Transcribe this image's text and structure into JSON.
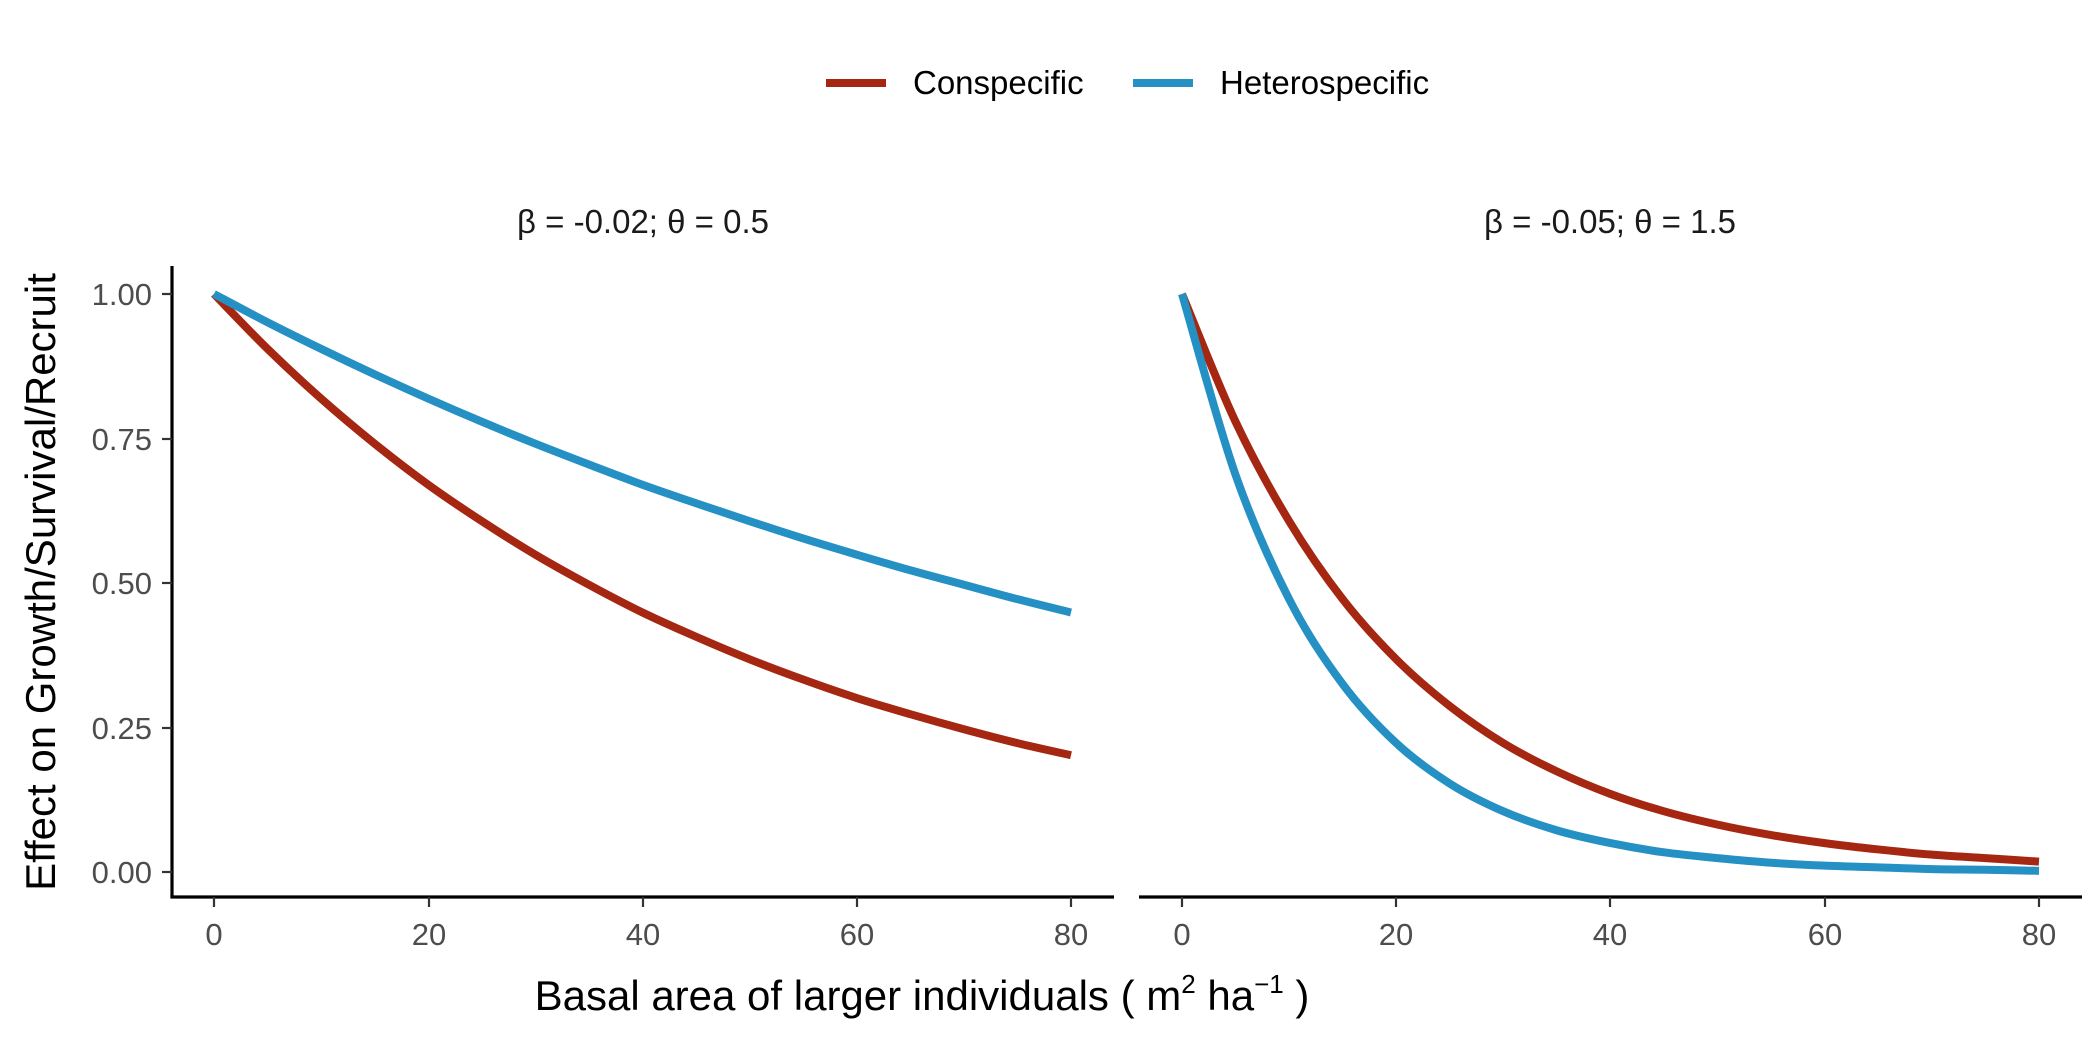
{
  "chart_data": {
    "type": "line",
    "legend": {
      "position": "top",
      "entries": [
        {
          "label": "Conspecific",
          "color": "#A52712"
        },
        {
          "label": "Heterospecific",
          "color": "#2590C3"
        }
      ]
    },
    "xlabel": "Basal area of larger individuals ( m",
    "xlabel_sup1": "2",
    "xlabel_mid": " ha",
    "xlabel_sup2": "−1",
    "xlabel_end": " )",
    "ylabel": "Effect on Growth/Survival/Recruit",
    "xlim": [
      0,
      80
    ],
    "ylim": [
      0,
      1
    ],
    "x_ticks": [
      0,
      20,
      40,
      60,
      80
    ],
    "x_tick_labels": [
      "0",
      "20",
      "40",
      "60",
      "80"
    ],
    "y_ticks": [
      0,
      0.25,
      0.5,
      0.75,
      1
    ],
    "y_tick_labels": [
      "0.00",
      "0.25",
      "0.50",
      "0.75",
      "1.00"
    ],
    "grid": false,
    "panels": [
      {
        "label": "β = -0.02; θ = 0.5",
        "x": [
          0,
          5,
          10,
          15,
          20,
          25,
          30,
          35,
          40,
          45,
          50,
          55,
          60,
          65,
          70,
          75,
          80
        ],
        "series": [
          {
            "name": "Conspecific",
            "color": "#A52712",
            "values": [
              1.0,
              0.905,
              0.819,
              0.741,
              0.67,
              0.607,
              0.549,
              0.497,
              0.449,
              0.407,
              0.368,
              0.333,
              0.301,
              0.273,
              0.247,
              0.223,
              0.202
            ]
          },
          {
            "name": "Heterospecific",
            "color": "#2590C3",
            "values": [
              1.0,
              0.951,
              0.905,
              0.861,
              0.819,
              0.779,
              0.741,
              0.705,
              0.67,
              0.638,
              0.607,
              0.577,
              0.549,
              0.522,
              0.497,
              0.472,
              0.449
            ]
          }
        ]
      },
      {
        "label": "β = -0.05; θ = 1.5",
        "x": [
          0,
          5,
          10,
          15,
          20,
          25,
          30,
          35,
          40,
          45,
          50,
          55,
          60,
          65,
          70,
          75,
          80
        ],
        "series": [
          {
            "name": "Conspecific",
            "color": "#A52712",
            "values": [
              1.0,
              0.779,
              0.607,
              0.472,
              0.368,
              0.287,
              0.223,
              0.174,
              0.135,
              0.105,
              0.082,
              0.064,
              0.05,
              0.039,
              0.03,
              0.024,
              0.018
            ]
          },
          {
            "name": "Heterospecific",
            "color": "#2590C3",
            "values": [
              1.0,
              0.687,
              0.472,
              0.325,
              0.223,
              0.153,
              0.105,
              0.072,
              0.05,
              0.034,
              0.024,
              0.016,
              0.011,
              0.008,
              0.005,
              0.004,
              0.002
            ]
          }
        ]
      }
    ]
  }
}
